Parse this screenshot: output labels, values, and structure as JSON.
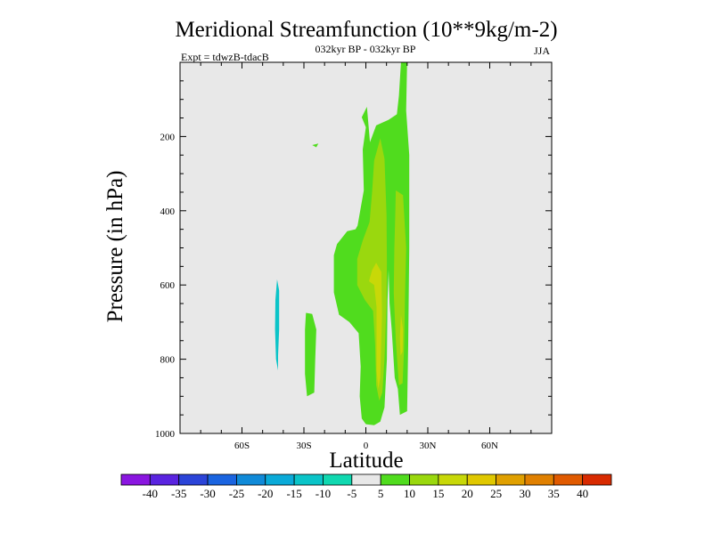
{
  "chart_data": {
    "type": "filled-contour",
    "title": "Meridional Streamfunction (10**9kg/m-2)",
    "subtitle_center": "032kyr BP - 032kyr BP",
    "subtitle_left": "Expt = tdwzB-tdacB",
    "subtitle_right": "JJA",
    "xlabel": "Latitude",
    "ylabel": "Pressure (in hPa)",
    "xlim": [
      -90,
      90
    ],
    "ylim": [
      0,
      1000
    ],
    "x_ticks": [
      {
        "value": -60,
        "label": "60S"
      },
      {
        "value": -30,
        "label": "30S"
      },
      {
        "value": 0,
        "label": "0"
      },
      {
        "value": 30,
        "label": "30N"
      },
      {
        "value": 60,
        "label": "60N"
      }
    ],
    "y_ticks": [
      {
        "value": 200,
        "label": "200"
      },
      {
        "value": 400,
        "label": "400"
      },
      {
        "value": 600,
        "label": "600"
      },
      {
        "value": 800,
        "label": "800"
      },
      {
        "value": 1000,
        "label": "1000"
      }
    ],
    "colorbar": {
      "levels": [
        "-40",
        "-35",
        "-30",
        "-25",
        "-20",
        "-15",
        "-10",
        "-5",
        "5",
        "10",
        "15",
        "20",
        "25",
        "30",
        "35",
        "40"
      ],
      "colors": [
        "#8a16e0",
        "#5a24e0",
        "#2b44d8",
        "#1a64e0",
        "#108ad8",
        "#0aaad8",
        "#0ac4c8",
        "#10d8b0",
        "#e8e8e8",
        "#50dc1e",
        "#9ad80e",
        "#c8d808",
        "#e0c800",
        "#e0a000",
        "#e08000",
        "#e05a00",
        "#d82a00"
      ]
    },
    "background_color": "#e8e8e8",
    "regions": [
      {
        "name": "neg-10-patch",
        "color": "#0ac4c8",
        "points": [
          [
            -43,
            585
          ],
          [
            -42,
            615
          ],
          [
            -42,
            720
          ],
          [
            -42.5,
            790
          ],
          [
            -42.5,
            830
          ],
          [
            -43.5,
            800
          ],
          [
            -44,
            720
          ],
          [
            -43.8,
            640
          ]
        ]
      },
      {
        "name": "pos-5-dot",
        "color": "#50dc1e",
        "points": [
          [
            -26,
            223
          ],
          [
            -23,
            219
          ],
          [
            -24,
            229
          ]
        ]
      },
      {
        "name": "pos-5-lower-blob",
        "color": "#50dc1e",
        "points": [
          [
            -29,
            675
          ],
          [
            -26,
            678
          ],
          [
            -24,
            720
          ],
          [
            -24.5,
            800
          ],
          [
            -25,
            890
          ],
          [
            -28.5,
            900
          ],
          [
            -29.5,
            840
          ],
          [
            -29.5,
            720
          ]
        ]
      },
      {
        "name": "pos-5-main",
        "color": "#50dc1e",
        "points": [
          [
            17,
            0
          ],
          [
            20,
            0
          ],
          [
            19.5,
            130
          ],
          [
            21,
            250
          ],
          [
            21,
            500
          ],
          [
            20.5,
            760
          ],
          [
            20,
            940
          ],
          [
            16.5,
            950
          ],
          [
            15.5,
            880
          ],
          [
            14,
            850
          ],
          [
            12.5,
            720
          ],
          [
            11.5,
            650
          ],
          [
            11,
            560
          ],
          [
            10.5,
            640
          ],
          [
            10.2,
            800
          ],
          [
            9,
            930
          ],
          [
            7,
            968
          ],
          [
            4,
            978
          ],
          [
            0,
            975
          ],
          [
            -2,
            960
          ],
          [
            -3,
            900
          ],
          [
            -2.5,
            820
          ],
          [
            -3.5,
            730
          ],
          [
            -8,
            700
          ],
          [
            -13,
            680
          ],
          [
            -15.5,
            620
          ],
          [
            -15.5,
            520
          ],
          [
            -14,
            490
          ],
          [
            -9,
            455
          ],
          [
            -5,
            450
          ],
          [
            -4,
            440
          ],
          [
            -1,
            345
          ],
          [
            -1.5,
            235
          ],
          [
            0,
            175
          ],
          [
            -2,
            148
          ],
          [
            0.5,
            120
          ],
          [
            2,
            215
          ],
          [
            5,
            170
          ],
          [
            11,
            155
          ],
          [
            15,
            140
          ],
          [
            16,
            90
          ]
        ]
      },
      {
        "name": "pos-10-west",
        "color": "#9ad80e",
        "points": [
          [
            4,
            265
          ],
          [
            7,
            205
          ],
          [
            9,
            260
          ],
          [
            10,
            410
          ],
          [
            10.2,
            540
          ],
          [
            10,
            650
          ],
          [
            9,
            800
          ],
          [
            8,
            890
          ],
          [
            6.5,
            912
          ],
          [
            5,
            870
          ],
          [
            4.5,
            760
          ],
          [
            3.5,
            670
          ],
          [
            -0.5,
            640
          ],
          [
            -4.2,
            600
          ],
          [
            -4.2,
            530
          ],
          [
            -1.5,
            480
          ],
          [
            1.8,
            430
          ],
          [
            3,
            350
          ]
        ]
      },
      {
        "name": "pos-10-east",
        "color": "#9ad80e",
        "points": [
          [
            14.5,
            345
          ],
          [
            18,
            358
          ],
          [
            19.5,
            500
          ],
          [
            19,
            620
          ],
          [
            18.5,
            770
          ],
          [
            17.8,
            865
          ],
          [
            16,
            870
          ],
          [
            14.5,
            750
          ],
          [
            13.5,
            620
          ],
          [
            13.8,
            500
          ],
          [
            14.2,
            420
          ]
        ]
      },
      {
        "name": "pos-15-west",
        "color": "#c8d808",
        "points": [
          [
            5,
            540
          ],
          [
            7.5,
            565
          ],
          [
            7.8,
            680
          ],
          [
            7,
            850
          ],
          [
            6,
            880
          ],
          [
            5.2,
            830
          ],
          [
            5.2,
            660
          ],
          [
            4,
            600
          ],
          [
            1.5,
            590
          ],
          [
            3,
            560
          ]
        ]
      },
      {
        "name": "pos-15-east",
        "color": "#c8d808",
        "points": [
          [
            17,
            680
          ],
          [
            18,
            720
          ],
          [
            17.8,
            780
          ],
          [
            16.8,
            790
          ],
          [
            16.5,
            740
          ]
        ]
      }
    ]
  }
}
